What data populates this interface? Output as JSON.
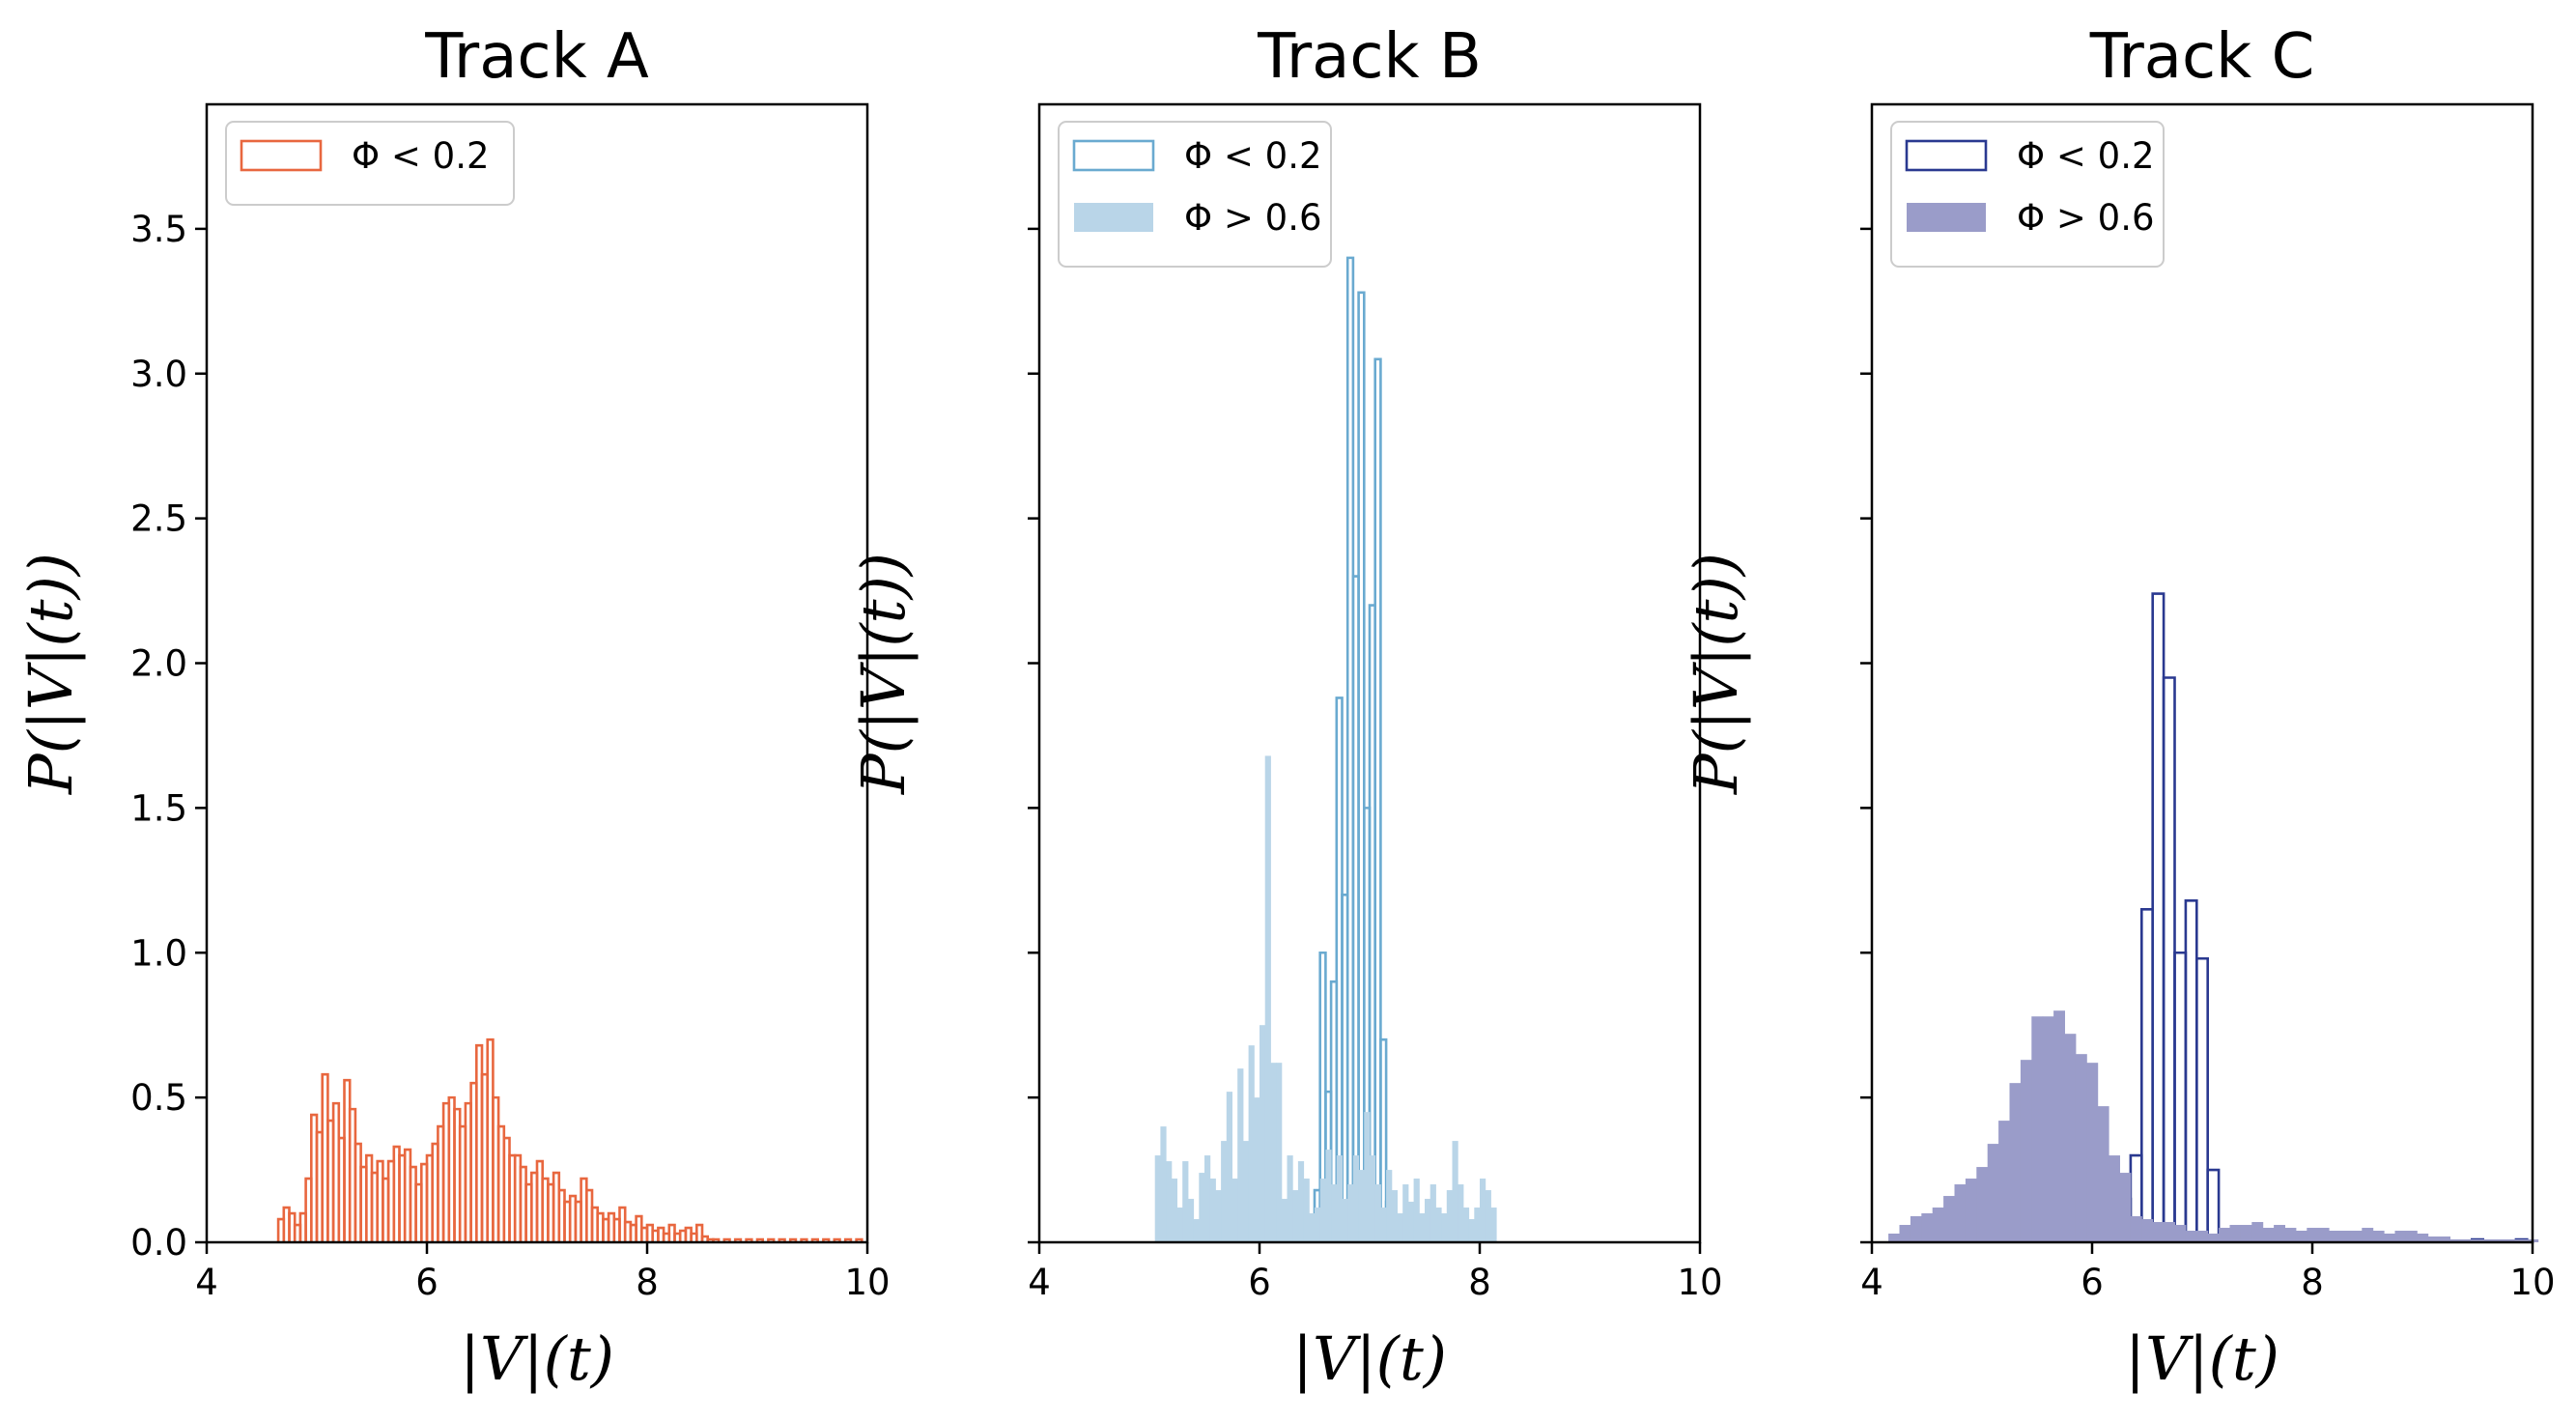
{
  "chart_data": [
    {
      "type": "histogram",
      "title": "Track A",
      "xlabel": "|V|(t)",
      "ylabel": "P(|V|(t))",
      "xlim": [
        4,
        10
      ],
      "ylim": [
        0,
        3.93
      ],
      "xticks": [
        "4",
        "6",
        "8",
        "10"
      ],
      "yticks": [
        "0.0",
        "0.5",
        "1.0",
        "1.5",
        "2.0",
        "2.5",
        "3.0",
        "3.5"
      ],
      "legend_position": "upper-left",
      "series": [
        {
          "name": "Φ < 0.2",
          "style": "step",
          "color": "#e8673f",
          "bins": [
            [
              4.65,
              0.08
            ],
            [
              4.7,
              0.12
            ],
            [
              4.75,
              0.1
            ],
            [
              4.8,
              0.06
            ],
            [
              4.85,
              0.1
            ],
            [
              4.9,
              0.22
            ],
            [
              4.95,
              0.44
            ],
            [
              5.0,
              0.38
            ],
            [
              5.05,
              0.58
            ],
            [
              5.1,
              0.42
            ],
            [
              5.15,
              0.48
            ],
            [
              5.2,
              0.36
            ],
            [
              5.25,
              0.56
            ],
            [
              5.3,
              0.46
            ],
            [
              5.35,
              0.34
            ],
            [
              5.4,
              0.26
            ],
            [
              5.45,
              0.3
            ],
            [
              5.5,
              0.24
            ],
            [
              5.55,
              0.28
            ],
            [
              5.6,
              0.22
            ],
            [
              5.65,
              0.28
            ],
            [
              5.7,
              0.33
            ],
            [
              5.75,
              0.3
            ],
            [
              5.8,
              0.32
            ],
            [
              5.85,
              0.26
            ],
            [
              5.9,
              0.2
            ],
            [
              5.95,
              0.27
            ],
            [
              6.0,
              0.3
            ],
            [
              6.05,
              0.34
            ],
            [
              6.1,
              0.4
            ],
            [
              6.15,
              0.48
            ],
            [
              6.2,
              0.5
            ],
            [
              6.25,
              0.46
            ],
            [
              6.3,
              0.4
            ],
            [
              6.35,
              0.48
            ],
            [
              6.4,
              0.55
            ],
            [
              6.45,
              0.68
            ],
            [
              6.5,
              0.58
            ],
            [
              6.55,
              0.7
            ],
            [
              6.6,
              0.5
            ],
            [
              6.65,
              0.4
            ],
            [
              6.7,
              0.36
            ],
            [
              6.75,
              0.3
            ],
            [
              6.8,
              0.3
            ],
            [
              6.85,
              0.26
            ],
            [
              6.9,
              0.2
            ],
            [
              6.95,
              0.24
            ],
            [
              7.0,
              0.28
            ],
            [
              7.05,
              0.22
            ],
            [
              7.1,
              0.2
            ],
            [
              7.15,
              0.24
            ],
            [
              7.2,
              0.18
            ],
            [
              7.25,
              0.14
            ],
            [
              7.3,
              0.16
            ],
            [
              7.35,
              0.14
            ],
            [
              7.4,
              0.22
            ],
            [
              7.45,
              0.18
            ],
            [
              7.5,
              0.12
            ],
            [
              7.55,
              0.1
            ],
            [
              7.6,
              0.08
            ],
            [
              7.65,
              0.1
            ],
            [
              7.7,
              0.08
            ],
            [
              7.75,
              0.12
            ],
            [
              7.8,
              0.07
            ],
            [
              7.85,
              0.06
            ],
            [
              7.9,
              0.09
            ],
            [
              7.95,
              0.05
            ],
            [
              8.0,
              0.06
            ],
            [
              8.05,
              0.04
            ],
            [
              8.1,
              0.05
            ],
            [
              8.15,
              0.03
            ],
            [
              8.2,
              0.06
            ],
            [
              8.25,
              0.03
            ],
            [
              8.3,
              0.04
            ],
            [
              8.35,
              0.05
            ],
            [
              8.4,
              0.03
            ],
            [
              8.45,
              0.06
            ],
            [
              8.5,
              0.02
            ],
            [
              8.55,
              0.01
            ],
            [
              8.6,
              0.01
            ],
            [
              8.7,
              0.01
            ],
            [
              8.8,
              0.01
            ],
            [
              8.9,
              0.01
            ],
            [
              9.0,
              0.01
            ],
            [
              9.1,
              0.01
            ],
            [
              9.2,
              0.01
            ],
            [
              9.3,
              0.01
            ],
            [
              9.4,
              0.01
            ],
            [
              9.5,
              0.01
            ],
            [
              9.6,
              0.01
            ],
            [
              9.7,
              0.01
            ],
            [
              9.8,
              0.01
            ],
            [
              9.9,
              0.01
            ]
          ]
        }
      ]
    },
    {
      "type": "histogram",
      "title": "Track B",
      "xlabel": "|V|(t)",
      "ylabel": "P(|V|(t))",
      "xlim": [
        4,
        10
      ],
      "ylim": [
        0,
        3.93
      ],
      "xticks": [
        "4",
        "6",
        "8",
        "10"
      ],
      "yticks": [],
      "legend_position": "upper-left",
      "series": [
        {
          "name": "Φ < 0.2",
          "style": "step",
          "color": "#6aaad0",
          "bins": [
            [
              6.45,
              0.08
            ],
            [
              6.5,
              0.18
            ],
            [
              6.55,
              1.0
            ],
            [
              6.6,
              0.52
            ],
            [
              6.65,
              0.9
            ],
            [
              6.7,
              1.88
            ],
            [
              6.75,
              1.2
            ],
            [
              6.8,
              3.4
            ],
            [
              6.85,
              2.3
            ],
            [
              6.9,
              3.28
            ],
            [
              6.95,
              1.5
            ],
            [
              7.0,
              2.2
            ],
            [
              7.05,
              3.05
            ],
            [
              7.1,
              0.7
            ],
            [
              7.15,
              0.14
            ]
          ]
        },
        {
          "name": "Φ > 0.6",
          "style": "filled",
          "color": "#b9d5e8",
          "bins": [
            [
              5.05,
              0.3
            ],
            [
              5.1,
              0.4
            ],
            [
              5.15,
              0.28
            ],
            [
              5.2,
              0.22
            ],
            [
              5.25,
              0.12
            ],
            [
              5.3,
              0.28
            ],
            [
              5.35,
              0.15
            ],
            [
              5.4,
              0.08
            ],
            [
              5.45,
              0.24
            ],
            [
              5.5,
              0.3
            ],
            [
              5.55,
              0.22
            ],
            [
              5.6,
              0.18
            ],
            [
              5.65,
              0.35
            ],
            [
              5.7,
              0.52
            ],
            [
              5.75,
              0.22
            ],
            [
              5.8,
              0.6
            ],
            [
              5.85,
              0.35
            ],
            [
              5.9,
              0.68
            ],
            [
              5.95,
              0.5
            ],
            [
              6.0,
              0.75
            ],
            [
              6.05,
              1.68
            ],
            [
              6.1,
              0.62
            ],
            [
              6.15,
              0.62
            ],
            [
              6.2,
              0.15
            ],
            [
              6.25,
              0.3
            ],
            [
              6.3,
              0.18
            ],
            [
              6.35,
              0.28
            ],
            [
              6.4,
              0.22
            ],
            [
              6.45,
              0.1
            ],
            [
              6.5,
              0.12
            ],
            [
              6.55,
              0.22
            ],
            [
              6.6,
              0.32
            ],
            [
              6.65,
              0.2
            ],
            [
              6.7,
              0.3
            ],
            [
              6.75,
              0.15
            ],
            [
              6.8,
              0.2
            ],
            [
              6.85,
              0.3
            ],
            [
              6.9,
              0.25
            ],
            [
              6.95,
              0.45
            ],
            [
              7.0,
              0.3
            ],
            [
              7.05,
              0.2
            ],
            [
              7.1,
              0.12
            ],
            [
              7.15,
              0.25
            ],
            [
              7.2,
              0.18
            ],
            [
              7.25,
              0.1
            ],
            [
              7.3,
              0.2
            ],
            [
              7.35,
              0.14
            ],
            [
              7.4,
              0.22
            ],
            [
              7.45,
              0.1
            ],
            [
              7.5,
              0.15
            ],
            [
              7.55,
              0.2
            ],
            [
              7.6,
              0.12
            ],
            [
              7.65,
              0.1
            ],
            [
              7.7,
              0.18
            ],
            [
              7.75,
              0.35
            ],
            [
              7.8,
              0.2
            ],
            [
              7.85,
              0.12
            ],
            [
              7.9,
              0.08
            ],
            [
              7.95,
              0.12
            ],
            [
              8.0,
              0.22
            ],
            [
              8.05,
              0.18
            ],
            [
              8.1,
              0.12
            ]
          ]
        }
      ]
    },
    {
      "type": "histogram",
      "title": "Track C",
      "xlabel": "|V|(t)",
      "ylabel": "P(|V|(t))",
      "xlim": [
        4,
        10
      ],
      "ylim": [
        0,
        3.93
      ],
      "xticks": [
        "4",
        "6",
        "8",
        "10"
      ],
      "yticks": [],
      "legend_position": "upper-left",
      "series": [
        {
          "name": "Φ < 0.2",
          "style": "step",
          "color": "#2a3990",
          "bins": [
            [
              5.95,
              0.02
            ],
            [
              6.05,
              0.03
            ],
            [
              6.15,
              0.1
            ],
            [
              6.25,
              0.15
            ],
            [
              6.35,
              0.3
            ],
            [
              6.45,
              1.15
            ],
            [
              6.55,
              2.24
            ],
            [
              6.65,
              1.95
            ],
            [
              6.75,
              1.0
            ],
            [
              6.85,
              1.18
            ],
            [
              6.95,
              0.98
            ],
            [
              7.05,
              0.25
            ],
            [
              7.15,
              0.02
            ],
            [
              7.25,
              0.03
            ],
            [
              7.45,
              0.02
            ],
            [
              7.65,
              0.02
            ],
            [
              8.05,
              0.02
            ],
            [
              8.45,
              0.02
            ],
            [
              8.85,
              0.02
            ],
            [
              9.45,
              0.01
            ],
            [
              9.85,
              0.01
            ]
          ]
        },
        {
          "name": "Φ > 0.6",
          "style": "filled",
          "color": "#9a9cc9",
          "bins": [
            [
              4.15,
              0.03
            ],
            [
              4.25,
              0.06
            ],
            [
              4.35,
              0.09
            ],
            [
              4.45,
              0.1
            ],
            [
              4.55,
              0.12
            ],
            [
              4.65,
              0.16
            ],
            [
              4.75,
              0.2
            ],
            [
              4.85,
              0.22
            ],
            [
              4.95,
              0.26
            ],
            [
              5.05,
              0.34
            ],
            [
              5.15,
              0.42
            ],
            [
              5.25,
              0.55
            ],
            [
              5.35,
              0.63
            ],
            [
              5.45,
              0.78
            ],
            [
              5.55,
              0.78
            ],
            [
              5.65,
              0.8
            ],
            [
              5.75,
              0.72
            ],
            [
              5.85,
              0.65
            ],
            [
              5.95,
              0.62
            ],
            [
              6.05,
              0.47
            ],
            [
              6.15,
              0.3
            ],
            [
              6.25,
              0.24
            ],
            [
              6.35,
              0.09
            ],
            [
              6.45,
              0.08
            ],
            [
              6.55,
              0.07
            ],
            [
              6.65,
              0.07
            ],
            [
              6.75,
              0.06
            ],
            [
              6.85,
              0.04
            ],
            [
              6.95,
              0.04
            ],
            [
              7.05,
              0.03
            ],
            [
              7.15,
              0.05
            ],
            [
              7.25,
              0.06
            ],
            [
              7.35,
              0.06
            ],
            [
              7.45,
              0.07
            ],
            [
              7.55,
              0.05
            ],
            [
              7.65,
              0.06
            ],
            [
              7.75,
              0.05
            ],
            [
              7.85,
              0.04
            ],
            [
              7.95,
              0.05
            ],
            [
              8.05,
              0.05
            ],
            [
              8.15,
              0.04
            ],
            [
              8.25,
              0.04
            ],
            [
              8.35,
              0.04
            ],
            [
              8.45,
              0.05
            ],
            [
              8.55,
              0.04
            ],
            [
              8.65,
              0.03
            ],
            [
              8.75,
              0.04
            ],
            [
              8.85,
              0.04
            ],
            [
              8.95,
              0.03
            ],
            [
              9.05,
              0.02
            ],
            [
              9.15,
              0.02
            ],
            [
              9.25,
              0.01
            ],
            [
              9.35,
              0.01
            ],
            [
              9.45,
              0.01
            ],
            [
              9.55,
              0.01
            ],
            [
              9.65,
              0.01
            ],
            [
              9.75,
              0.01
            ],
            [
              9.85,
              0.01
            ],
            [
              9.95,
              0.01
            ]
          ]
        }
      ]
    }
  ]
}
